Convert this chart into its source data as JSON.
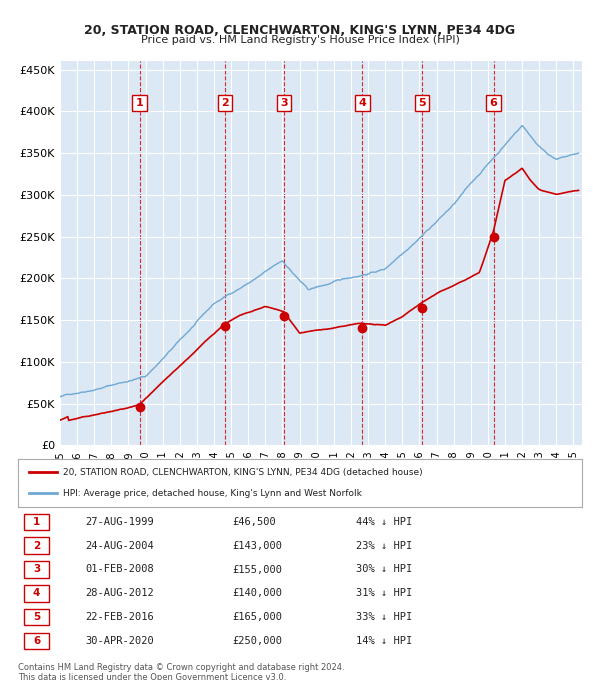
{
  "title1": "20, STATION ROAD, CLENCHWARTON, KING'S LYNN, PE34 4DG",
  "title2": "Price paid vs. HM Land Registry's House Price Index (HPI)",
  "ylabel": "",
  "bg_color": "#dce9f5",
  "plot_bg_color": "#dce9f5",
  "hpi_color": "#6fa8d4",
  "price_color": "#cc0000",
  "sale_marker_color": "#cc0000",
  "vline_color": "#cc0000",
  "grid_color": "#ffffff",
  "ylim": [
    0,
    460000
  ],
  "yticks": [
    0,
    50000,
    100000,
    150000,
    200000,
    250000,
    300000,
    350000,
    400000,
    450000
  ],
  "ytick_labels": [
    "£0",
    "£50K",
    "£100K",
    "£150K",
    "£200K",
    "£250K",
    "£300K",
    "£350K",
    "£400K",
    "£450K"
  ],
  "sales": [
    {
      "num": 1,
      "date": "1999-08-27",
      "price": 46500,
      "x": 1999.65
    },
    {
      "num": 2,
      "date": "2004-08-24",
      "price": 143000,
      "x": 2004.65
    },
    {
      "num": 3,
      "date": "2008-02-01",
      "price": 155000,
      "x": 2008.08
    },
    {
      "num": 4,
      "date": "2012-08-28",
      "price": 140000,
      "x": 2012.66
    },
    {
      "num": 5,
      "date": "2016-02-22",
      "price": 165000,
      "x": 2016.14
    },
    {
      "num": 6,
      "date": "2020-04-30",
      "price": 250000,
      "x": 2020.33
    }
  ],
  "table_data": [
    [
      "1",
      "27-AUG-1999",
      "£46,500",
      "44% ↓ HPI"
    ],
    [
      "2",
      "24-AUG-2004",
      "£143,000",
      "23% ↓ HPI"
    ],
    [
      "3",
      "01-FEB-2008",
      "£155,000",
      "30% ↓ HPI"
    ],
    [
      "4",
      "28-AUG-2012",
      "£140,000",
      "31% ↓ HPI"
    ],
    [
      "5",
      "22-FEB-2016",
      "£165,000",
      "33% ↓ HPI"
    ],
    [
      "6",
      "30-APR-2020",
      "£250,000",
      "14% ↓ HPI"
    ]
  ],
  "legend_line1": "20, STATION ROAD, CLENCHWARTON, KING'S LYNN, PE34 4DG (detached house)",
  "legend_line2": "HPI: Average price, detached house, King's Lynn and West Norfolk",
  "footer": "Contains HM Land Registry data © Crown copyright and database right 2024.\nThis data is licensed under the Open Government Licence v3.0.",
  "xmin": 1995.0,
  "xmax": 2025.5
}
